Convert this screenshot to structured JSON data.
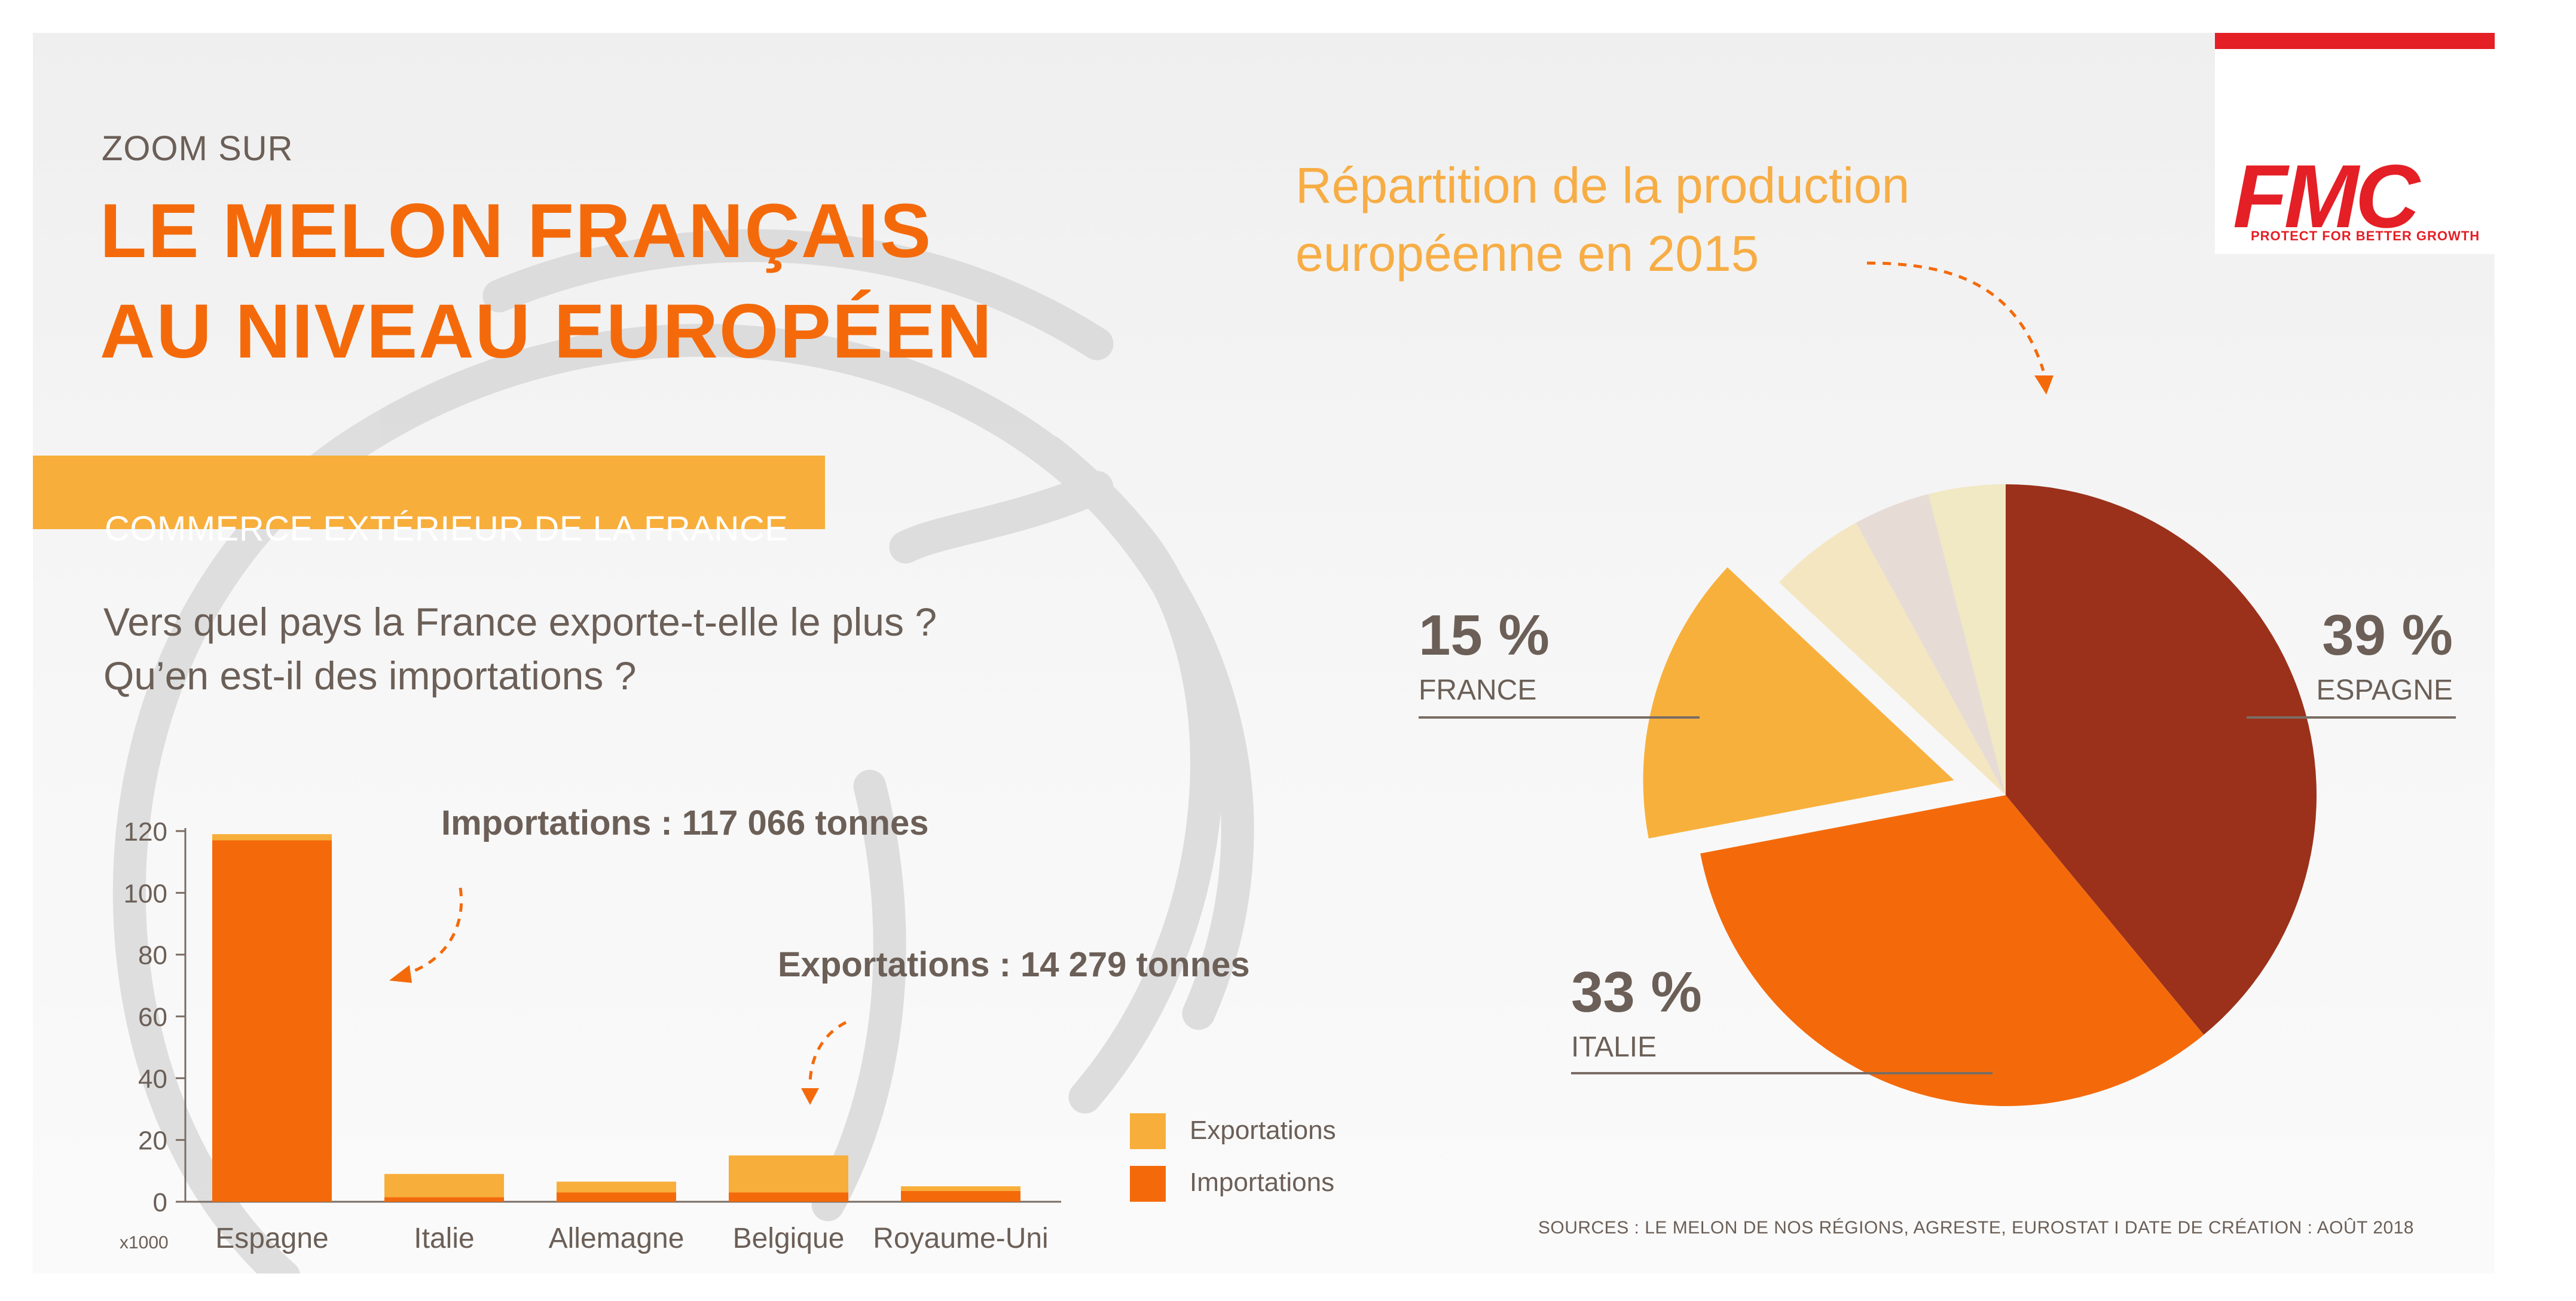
{
  "header": {
    "kicker": "ZOOM SUR",
    "title_line1": "LE MELON FRANÇAIS",
    "title_line2": "AU NIVEAU EUROPÉEN"
  },
  "section": {
    "band": "COMMERCE EXTÉRIEUR DE LA FRANCE",
    "question_line1": "Vers quel pays la France exporte-t-elle le plus ?",
    "question_line2": "Qu’en est-il des importations ?"
  },
  "logo": {
    "word": "FMC",
    "tagline": "PROTECT FOR BETTER GROWTH"
  },
  "sources": "SOURCES : LE MELON DE NOS RÉGIONS, AGRESTE, EUROSTAT I  DATE DE CRÉATION : AOÛT 2018",
  "colors": {
    "accent_orange": "#f46a0b",
    "light_orange": "#f8ae3a",
    "text_brown": "#6b5f57",
    "dark_red": "#9b311a",
    "brand_red": "#e41f26"
  },
  "chart_data": [
    {
      "type": "bar",
      "stacked": true,
      "categories": [
        "Espagne",
        "Italie",
        "Allemagne",
        "Belgique",
        "Royaume-Uni"
      ],
      "series": [
        {
          "name": "Importations",
          "values": [
            117,
            1.5,
            3,
            3,
            3.5
          ],
          "color": "#f46a0b"
        },
        {
          "name": "Exportations",
          "values": [
            2,
            7.5,
            3.5,
            12,
            1.5
          ],
          "color": "#f8ae3a"
        }
      ],
      "ylim": [
        0,
        120
      ],
      "yticks": [
        "0",
        "20",
        "40",
        "60",
        "80",
        "100",
        "120"
      ],
      "unit_label": "x1000",
      "legend": [
        "Exportations",
        "Importations"
      ],
      "legend_position": "right",
      "annotations": [
        {
          "label": "Importations : 117 066 tonnes"
        },
        {
          "label": "Exportations : 14 279 tonnes"
        }
      ]
    },
    {
      "type": "pie",
      "title_line1": "Répartition de la production",
      "title_line2": "européenne en 2015",
      "slices": [
        {
          "label": "ESPAGNE",
          "value": 39,
          "percent_text": "39 %",
          "color": "#9b311a",
          "exploded": false
        },
        {
          "label": "ITALIE",
          "value": 33,
          "percent_text": "33 %",
          "color": "#f46a0b",
          "exploded": false
        },
        {
          "label": "FRANCE",
          "value": 15,
          "percent_text": "15 %",
          "color": "#f8b03c",
          "exploded": true
        },
        {
          "label": "",
          "value": 5,
          "color": "#f4e6c1",
          "exploded": false
        },
        {
          "label": "",
          "value": 4,
          "color": "#e6dcd5",
          "exploded": false
        },
        {
          "label": "",
          "value": 4,
          "color": "#f1e8c4",
          "exploded": false
        }
      ]
    }
  ]
}
